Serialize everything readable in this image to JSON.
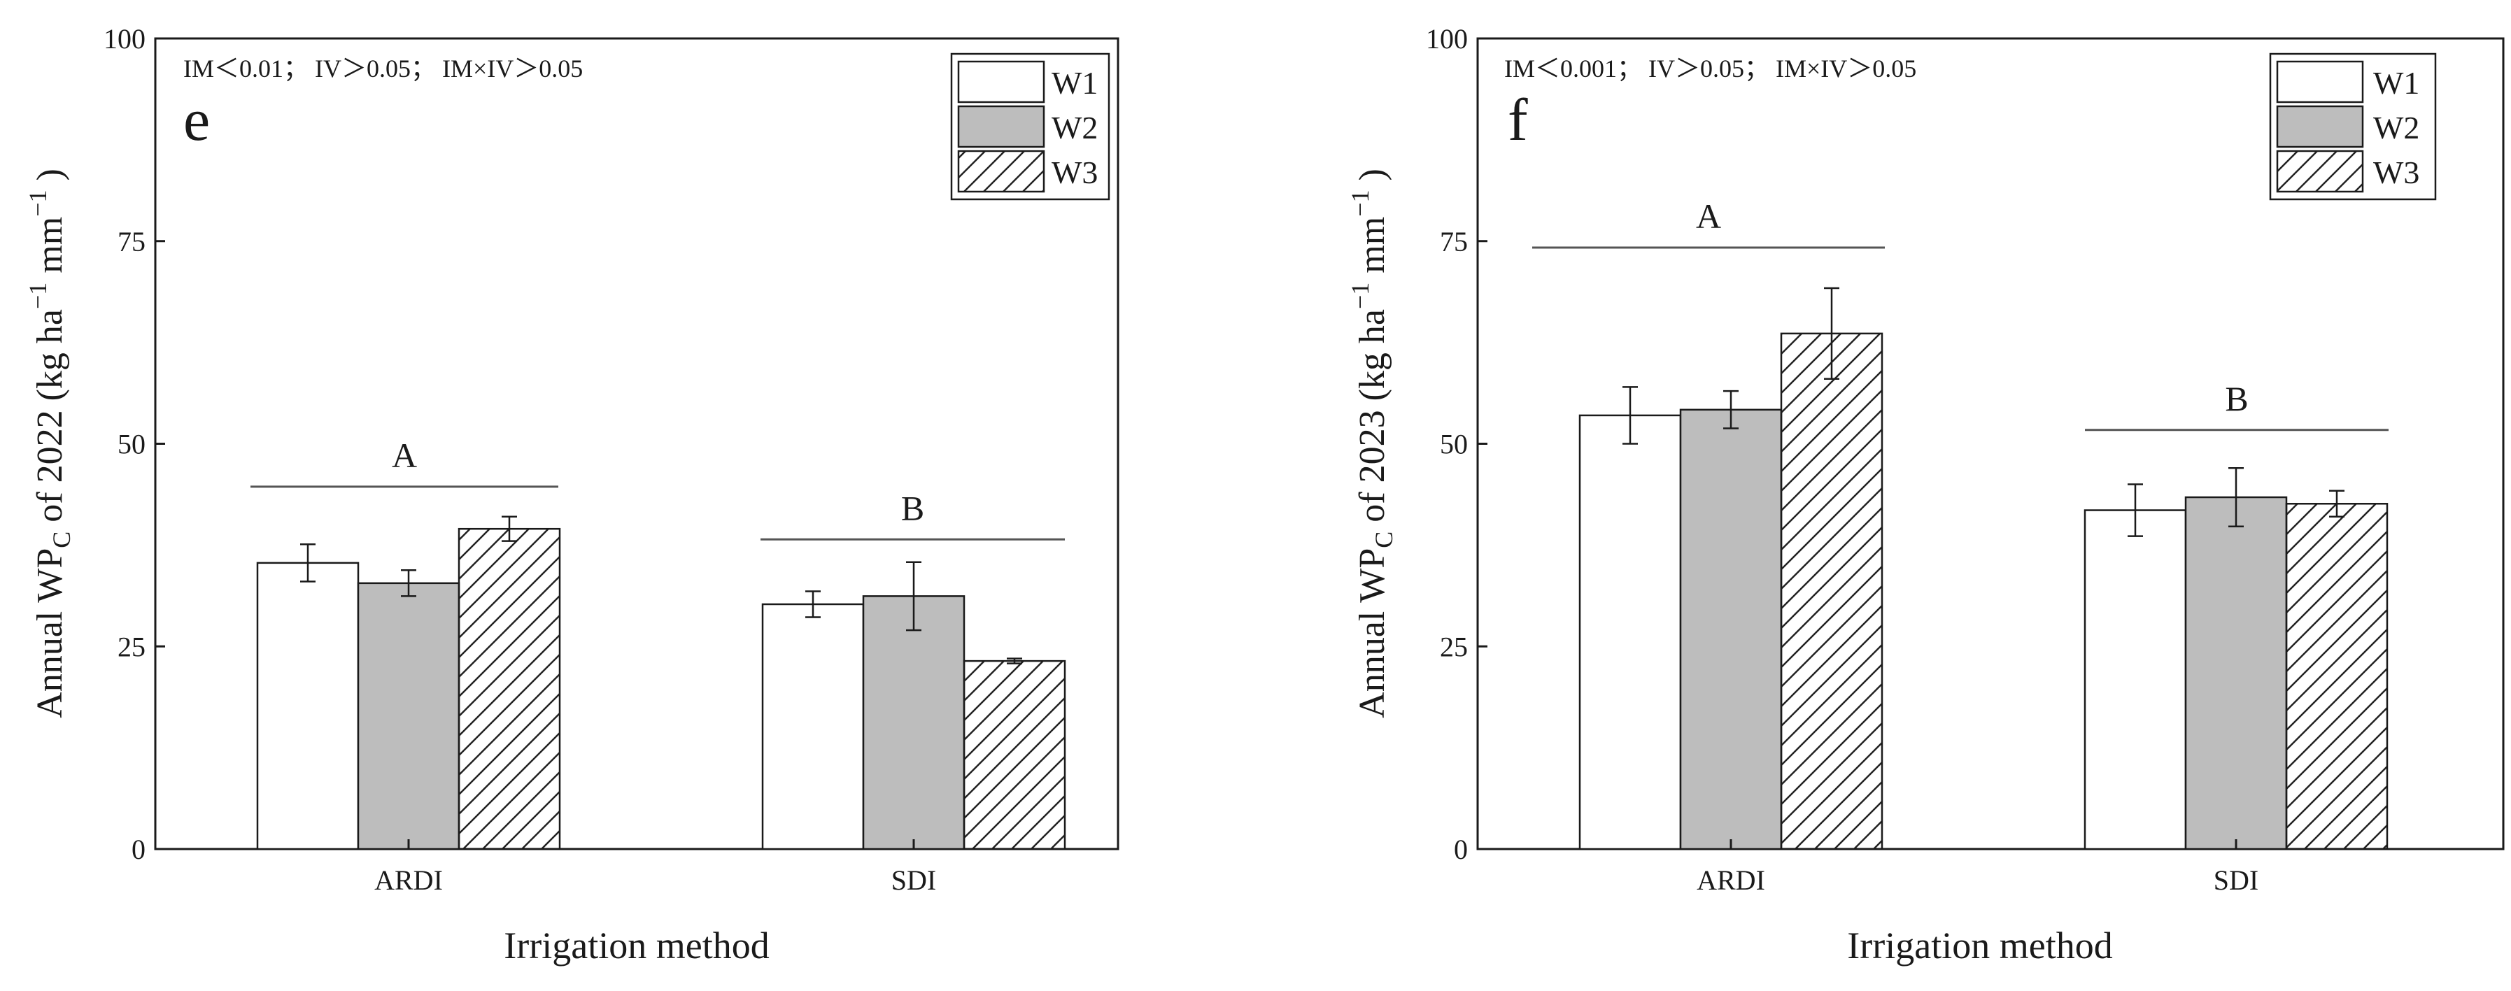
{
  "chart_data": [
    {
      "type": "bar",
      "panel_label": "e",
      "annotation": "IM＜0.01； IV＞0.05； IM×IV＞0.05",
      "categories": [
        "ARDI",
        "SDI"
      ],
      "series": [
        {
          "name": "W1",
          "values": [
            35.3,
            30.2
          ],
          "errors": [
            2.3,
            1.6
          ]
        },
        {
          "name": "W2",
          "values": [
            32.8,
            31.2
          ],
          "errors": [
            1.6,
            4.2
          ]
        },
        {
          "name": "W3",
          "values": [
            39.5,
            23.2
          ],
          "errors": [
            1.5,
            0.3
          ]
        }
      ],
      "group_letters": [
        "A",
        "B"
      ],
      "group_line_y": [
        44.7,
        38.2
      ],
      "xlabel": "Irrigation method",
      "ylabel": {
        "pre": "Annual WP",
        "sub": "C",
        "mid": " of 2022 (kg ha",
        "sup": "−1",
        "post": " mm",
        "post_sup": "−1",
        "end": " )"
      },
      "ylim": [
        0,
        100
      ],
      "yticks": [
        0,
        25,
        50,
        75,
        100
      ],
      "legend_position": "top-right"
    },
    {
      "type": "bar",
      "panel_label": "f",
      "annotation": "IM＜0.001； IV＞0.05； IM×IV＞0.05",
      "categories": [
        "ARDI",
        "SDI"
      ],
      "series": [
        {
          "name": "W1",
          "values": [
            53.5,
            41.8
          ],
          "errors": [
            3.5,
            3.2
          ]
        },
        {
          "name": "W2",
          "values": [
            54.2,
            43.4
          ],
          "errors": [
            2.3,
            3.6
          ]
        },
        {
          "name": "W3",
          "values": [
            63.6,
            42.6
          ],
          "errors": [
            5.6,
            1.6
          ]
        }
      ],
      "group_letters": [
        "A",
        "B"
      ],
      "group_line_y": [
        74.2,
        51.7
      ],
      "xlabel": "Irrigation method",
      "ylabel": {
        "pre": "Annual WP",
        "sub": "C",
        "mid": " of 2023 (kg ha",
        "sup": "−1",
        "post": " mm",
        "post_sup": "−1",
        "end": " )"
      },
      "ylim": [
        0,
        100
      ],
      "yticks": [
        0,
        25,
        50,
        75,
        100
      ],
      "legend_position": "top-right"
    }
  ]
}
